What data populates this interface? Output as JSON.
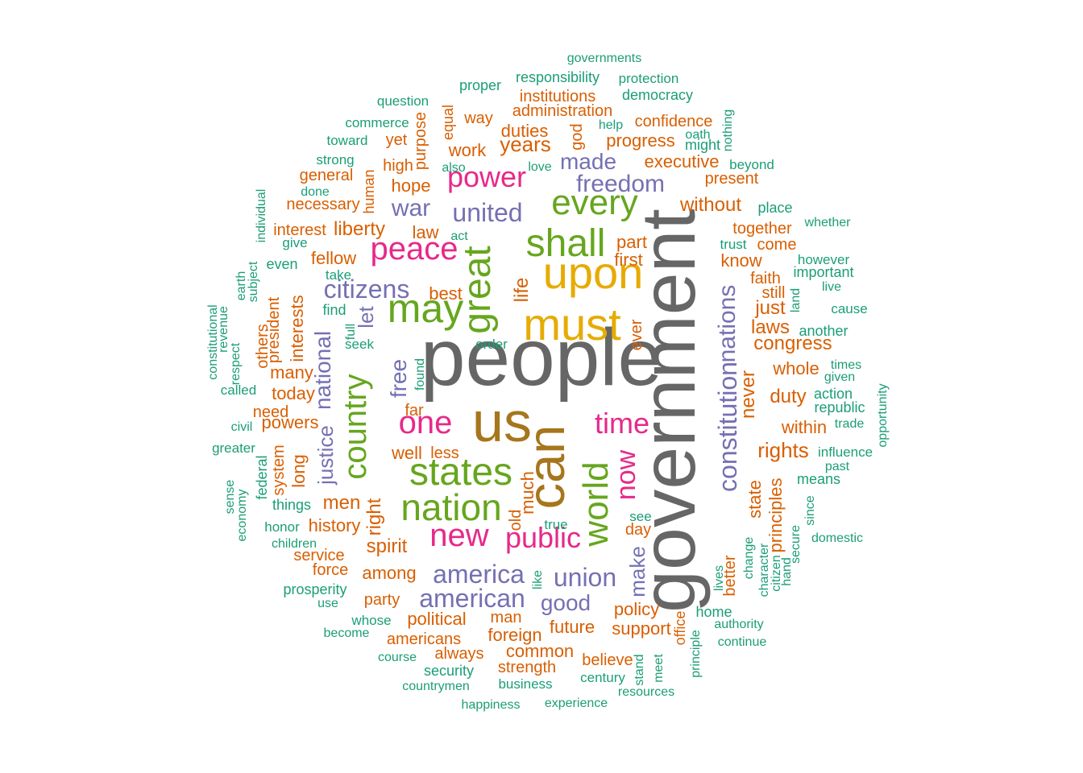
{
  "chart_data": {
    "type": "wordcloud",
    "colors": {
      "teal": "#1B9E77",
      "orange": "#D95F02",
      "purple": "#7570B3",
      "magenta": "#E7298A",
      "green": "#66A61E",
      "gold": "#E6AB02",
      "brown": "#A6761D",
      "gray": "#666666"
    },
    "words": [
      {
        "text": "people",
        "size": 100,
        "color": "#666666"
      },
      {
        "text": "government",
        "size": 95,
        "color": "#666666"
      },
      {
        "text": "us",
        "size": 70,
        "color": "#A6761D"
      },
      {
        "text": "can",
        "size": 65,
        "color": "#A6761D"
      },
      {
        "text": "must",
        "size": 56,
        "color": "#E6AB02"
      },
      {
        "text": "upon",
        "size": 56,
        "color": "#E6AB02"
      },
      {
        "text": "may",
        "size": 50,
        "color": "#66A61E"
      },
      {
        "text": "great",
        "size": 48,
        "color": "#66A61E"
      },
      {
        "text": "states",
        "size": 48,
        "color": "#66A61E"
      },
      {
        "text": "shall",
        "size": 48,
        "color": "#66A61E"
      },
      {
        "text": "nation",
        "size": 46,
        "color": "#66A61E"
      },
      {
        "text": "every",
        "size": 44,
        "color": "#66A61E"
      },
      {
        "text": "world",
        "size": 44,
        "color": "#66A61E"
      },
      {
        "text": "country",
        "size": 40,
        "color": "#66A61E"
      },
      {
        "text": "peace",
        "size": 40,
        "color": "#E7298A"
      },
      {
        "text": "one",
        "size": 40,
        "color": "#E7298A"
      },
      {
        "text": "new",
        "size": 40,
        "color": "#E7298A"
      },
      {
        "text": "power",
        "size": 36,
        "color": "#E7298A"
      },
      {
        "text": "public",
        "size": 36,
        "color": "#E7298A"
      },
      {
        "text": "time",
        "size": 36,
        "color": "#E7298A"
      },
      {
        "text": "now",
        "size": 34,
        "color": "#E7298A"
      },
      {
        "text": "constitution",
        "size": 32,
        "color": "#7570B3"
      },
      {
        "text": "america",
        "size": 32,
        "color": "#7570B3"
      },
      {
        "text": "union",
        "size": 32,
        "color": "#7570B3"
      },
      {
        "text": "citizens",
        "size": 32,
        "color": "#7570B3"
      },
      {
        "text": "american",
        "size": 32,
        "color": "#7570B3"
      },
      {
        "text": "united",
        "size": 32,
        "color": "#7570B3"
      },
      {
        "text": "freedom",
        "size": 30,
        "color": "#7570B3"
      },
      {
        "text": "nations",
        "size": 30,
        "color": "#7570B3"
      },
      {
        "text": "war",
        "size": 30,
        "color": "#7570B3"
      },
      {
        "text": "national",
        "size": 28,
        "color": "#7570B3"
      },
      {
        "text": "free",
        "size": 28,
        "color": "#7570B3"
      },
      {
        "text": "good",
        "size": 28,
        "color": "#7570B3"
      },
      {
        "text": "made",
        "size": 28,
        "color": "#7570B3"
      },
      {
        "text": "make",
        "size": 26,
        "color": "#7570B3"
      },
      {
        "text": "let",
        "size": 26,
        "color": "#7570B3"
      },
      {
        "text": "justice",
        "size": 26,
        "color": "#7570B3"
      },
      {
        "text": "years",
        "size": 26,
        "color": "#D95F02"
      },
      {
        "text": "rights",
        "size": 26,
        "color": "#D95F02"
      },
      {
        "text": "life",
        "size": 24,
        "color": "#D95F02"
      },
      {
        "text": "spirit",
        "size": 24,
        "color": "#D95F02"
      },
      {
        "text": "without",
        "size": 24,
        "color": "#D95F02"
      },
      {
        "text": "men",
        "size": 24,
        "color": "#D95F02"
      },
      {
        "text": "congress",
        "size": 24,
        "color": "#D95F02"
      },
      {
        "text": "right",
        "size": 24,
        "color": "#D95F02"
      },
      {
        "text": "laws",
        "size": 24,
        "color": "#D95F02"
      },
      {
        "text": "just",
        "size": 24,
        "color": "#D95F02"
      },
      {
        "text": "never",
        "size": 24,
        "color": "#D95F02"
      },
      {
        "text": "duty",
        "size": 24,
        "color": "#D95F02"
      },
      {
        "text": "liberty",
        "size": 24,
        "color": "#D95F02"
      },
      {
        "text": "best",
        "size": 22,
        "color": "#D95F02"
      },
      {
        "text": "work",
        "size": 22,
        "color": "#D95F02"
      },
      {
        "text": "hope",
        "size": 22,
        "color": "#D95F02"
      },
      {
        "text": "law",
        "size": 22,
        "color": "#D95F02"
      },
      {
        "text": "fellow",
        "size": 22,
        "color": "#D95F02"
      },
      {
        "text": "many",
        "size": 22,
        "color": "#D95F02"
      },
      {
        "text": "today",
        "size": 22,
        "color": "#D95F02"
      },
      {
        "text": "well",
        "size": 22,
        "color": "#D95F02"
      },
      {
        "text": "among",
        "size": 22,
        "color": "#D95F02"
      },
      {
        "text": "political",
        "size": 22,
        "color": "#D95F02"
      },
      {
        "text": "foreign",
        "size": 22,
        "color": "#D95F02"
      },
      {
        "text": "future",
        "size": 22,
        "color": "#D95F02"
      },
      {
        "text": "policy",
        "size": 22,
        "color": "#D95F02"
      },
      {
        "text": "support",
        "size": 22,
        "color": "#D95F02"
      },
      {
        "text": "whole",
        "size": 22,
        "color": "#D95F02"
      },
      {
        "text": "within",
        "size": 22,
        "color": "#D95F02"
      },
      {
        "text": "state",
        "size": 22,
        "color": "#D95F02"
      },
      {
        "text": "principles",
        "size": 22,
        "color": "#D95F02"
      },
      {
        "text": "executive",
        "size": 22,
        "color": "#D95F02"
      },
      {
        "text": "progress",
        "size": 22,
        "color": "#D95F02"
      },
      {
        "text": "confidence",
        "size": 20,
        "color": "#D95F02"
      },
      {
        "text": "duties",
        "size": 22,
        "color": "#D95F02"
      },
      {
        "text": "god",
        "size": 20,
        "color": "#D95F02"
      },
      {
        "text": "administration",
        "size": 20,
        "color": "#D95F02"
      },
      {
        "text": "institutions",
        "size": 20,
        "color": "#D95F02"
      },
      {
        "text": "way",
        "size": 20,
        "color": "#D95F02"
      },
      {
        "text": "yet",
        "size": 20,
        "color": "#D95F02"
      },
      {
        "text": "purpose",
        "size": 20,
        "color": "#D95F02"
      },
      {
        "text": "equal",
        "size": 18,
        "color": "#D95F02"
      },
      {
        "text": "high",
        "size": 20,
        "color": "#D95F02"
      },
      {
        "text": "human",
        "size": 18,
        "color": "#D95F02"
      },
      {
        "text": "general",
        "size": 20,
        "color": "#D95F02"
      },
      {
        "text": "necessary",
        "size": 20,
        "color": "#D95F02"
      },
      {
        "text": "interest",
        "size": 20,
        "color": "#D95F02"
      },
      {
        "text": "part",
        "size": 22,
        "color": "#D95F02"
      },
      {
        "text": "first",
        "size": 22,
        "color": "#D95F02"
      },
      {
        "text": "know",
        "size": 22,
        "color": "#D95F02"
      },
      {
        "text": "faith",
        "size": 20,
        "color": "#D95F02"
      },
      {
        "text": "together",
        "size": 20,
        "color": "#D95F02"
      },
      {
        "text": "come",
        "size": 20,
        "color": "#D95F02"
      },
      {
        "text": "present",
        "size": 20,
        "color": "#D95F02"
      },
      {
        "text": "still",
        "size": 20,
        "color": "#D95F02"
      },
      {
        "text": "ever",
        "size": 20,
        "color": "#D95F02"
      },
      {
        "text": "interests",
        "size": 22,
        "color": "#D95F02"
      },
      {
        "text": "president",
        "size": 20,
        "color": "#D95F02"
      },
      {
        "text": "others",
        "size": 20,
        "color": "#D95F02"
      },
      {
        "text": "powers",
        "size": 22,
        "color": "#D95F02"
      },
      {
        "text": "need",
        "size": 20,
        "color": "#D95F02"
      },
      {
        "text": "far",
        "size": 20,
        "color": "#D95F02"
      },
      {
        "text": "less",
        "size": 20,
        "color": "#D95F02"
      },
      {
        "text": "much",
        "size": 22,
        "color": "#D95F02"
      },
      {
        "text": "old",
        "size": 20,
        "color": "#D95F02"
      },
      {
        "text": "day",
        "size": 20,
        "color": "#D95F02"
      },
      {
        "text": "system",
        "size": 20,
        "color": "#D95F02"
      },
      {
        "text": "long",
        "size": 22,
        "color": "#D95F02"
      },
      {
        "text": "history",
        "size": 22,
        "color": "#D95F02"
      },
      {
        "text": "service",
        "size": 20,
        "color": "#D95F02"
      },
      {
        "text": "force",
        "size": 20,
        "color": "#D95F02"
      },
      {
        "text": "party",
        "size": 20,
        "color": "#D95F02"
      },
      {
        "text": "americans",
        "size": 20,
        "color": "#D95F02"
      },
      {
        "text": "man",
        "size": 20,
        "color": "#D95F02"
      },
      {
        "text": "common",
        "size": 22,
        "color": "#D95F02"
      },
      {
        "text": "always",
        "size": 20,
        "color": "#D95F02"
      },
      {
        "text": "strength",
        "size": 20,
        "color": "#D95F02"
      },
      {
        "text": "believe",
        "size": 20,
        "color": "#D95F02"
      },
      {
        "text": "better",
        "size": 20,
        "color": "#D95F02"
      },
      {
        "text": "office",
        "size": 18,
        "color": "#D95F02"
      },
      {
        "text": "governments",
        "size": 16,
        "color": "#1B9E77"
      },
      {
        "text": "responsibility",
        "size": 18,
        "color": "#1B9E77"
      },
      {
        "text": "proper",
        "size": 18,
        "color": "#1B9E77"
      },
      {
        "text": "protection",
        "size": 17,
        "color": "#1B9E77"
      },
      {
        "text": "democracy",
        "size": 18,
        "color": "#1B9E77"
      },
      {
        "text": "question",
        "size": 17,
        "color": "#1B9E77"
      },
      {
        "text": "commerce",
        "size": 17,
        "color": "#1B9E77"
      },
      {
        "text": "help",
        "size": 16,
        "color": "#1B9E77"
      },
      {
        "text": "oath",
        "size": 16,
        "color": "#1B9E77"
      },
      {
        "text": "might",
        "size": 18,
        "color": "#1B9E77"
      },
      {
        "text": "nothing",
        "size": 16,
        "color": "#1B9E77"
      },
      {
        "text": "toward",
        "size": 17,
        "color": "#1B9E77"
      },
      {
        "text": "strong",
        "size": 17,
        "color": "#1B9E77"
      },
      {
        "text": "also",
        "size": 16,
        "color": "#1B9E77"
      },
      {
        "text": "love",
        "size": 16,
        "color": "#1B9E77"
      },
      {
        "text": "beyond",
        "size": 17,
        "color": "#1B9E77"
      },
      {
        "text": "done",
        "size": 16,
        "color": "#1B9E77"
      },
      {
        "text": "individual",
        "size": 16,
        "color": "#1B9E77"
      },
      {
        "text": "give",
        "size": 17,
        "color": "#1B9E77"
      },
      {
        "text": "act",
        "size": 16,
        "color": "#1B9E77"
      },
      {
        "text": "place",
        "size": 18,
        "color": "#1B9E77"
      },
      {
        "text": "whether",
        "size": 16,
        "color": "#1B9E77"
      },
      {
        "text": "trust",
        "size": 17,
        "color": "#1B9E77"
      },
      {
        "text": "however",
        "size": 17,
        "color": "#1B9E77"
      },
      {
        "text": "important",
        "size": 18,
        "color": "#1B9E77"
      },
      {
        "text": "live",
        "size": 16,
        "color": "#1B9E77"
      },
      {
        "text": "land",
        "size": 16,
        "color": "#1B9E77"
      },
      {
        "text": "cause",
        "size": 17,
        "color": "#1B9E77"
      },
      {
        "text": "another",
        "size": 18,
        "color": "#1B9E77"
      },
      {
        "text": "even",
        "size": 18,
        "color": "#1B9E77"
      },
      {
        "text": "take",
        "size": 17,
        "color": "#1B9E77"
      },
      {
        "text": "earth",
        "size": 16,
        "color": "#1B9E77"
      },
      {
        "text": "subject",
        "size": 16,
        "color": "#1B9E77"
      },
      {
        "text": "find",
        "size": 18,
        "color": "#1B9E77"
      },
      {
        "text": "full",
        "size": 16,
        "color": "#1B9E77"
      },
      {
        "text": "seek",
        "size": 17,
        "color": "#1B9E77"
      },
      {
        "text": "order",
        "size": 17,
        "color": "#1B9E77"
      },
      {
        "text": "found",
        "size": 16,
        "color": "#1B9E77"
      },
      {
        "text": "constitutional",
        "size": 16,
        "color": "#1B9E77"
      },
      {
        "text": "revenue",
        "size": 16,
        "color": "#1B9E77"
      },
      {
        "text": "respect",
        "size": 16,
        "color": "#1B9E77"
      },
      {
        "text": "called",
        "size": 17,
        "color": "#1B9E77"
      },
      {
        "text": "civil",
        "size": 16,
        "color": "#1B9E77"
      },
      {
        "text": "greater",
        "size": 17,
        "color": "#1B9E77"
      },
      {
        "text": "times",
        "size": 16,
        "color": "#1B9E77"
      },
      {
        "text": "given",
        "size": 16,
        "color": "#1B9E77"
      },
      {
        "text": "action",
        "size": 18,
        "color": "#1B9E77"
      },
      {
        "text": "republic",
        "size": 18,
        "color": "#1B9E77"
      },
      {
        "text": "trade",
        "size": 16,
        "color": "#1B9E77"
      },
      {
        "text": "opportunity",
        "size": 16,
        "color": "#1B9E77"
      },
      {
        "text": "influence",
        "size": 17,
        "color": "#1B9E77"
      },
      {
        "text": "past",
        "size": 16,
        "color": "#1B9E77"
      },
      {
        "text": "means",
        "size": 18,
        "color": "#1B9E77"
      },
      {
        "text": "since",
        "size": 16,
        "color": "#1B9E77"
      },
      {
        "text": "secure",
        "size": 16,
        "color": "#1B9E77"
      },
      {
        "text": "domestic",
        "size": 16,
        "color": "#1B9E77"
      },
      {
        "text": "federal",
        "size": 18,
        "color": "#1B9E77"
      },
      {
        "text": "sense",
        "size": 16,
        "color": "#1B9E77"
      },
      {
        "text": "economy",
        "size": 16,
        "color": "#1B9E77"
      },
      {
        "text": "things",
        "size": 18,
        "color": "#1B9E77"
      },
      {
        "text": "honor",
        "size": 17,
        "color": "#1B9E77"
      },
      {
        "text": "children",
        "size": 16,
        "color": "#1B9E77"
      },
      {
        "text": "see",
        "size": 17,
        "color": "#1B9E77"
      },
      {
        "text": "true",
        "size": 17,
        "color": "#1B9E77"
      },
      {
        "text": "like",
        "size": 16,
        "color": "#1B9E77"
      },
      {
        "text": "prosperity",
        "size": 18,
        "color": "#1B9E77"
      },
      {
        "text": "use",
        "size": 16,
        "color": "#1B9E77"
      },
      {
        "text": "whose",
        "size": 17,
        "color": "#1B9E77"
      },
      {
        "text": "become",
        "size": 16,
        "color": "#1B9E77"
      },
      {
        "text": "course",
        "size": 16,
        "color": "#1B9E77"
      },
      {
        "text": "security",
        "size": 18,
        "color": "#1B9E77"
      },
      {
        "text": "countrymen",
        "size": 16,
        "color": "#1B9E77"
      },
      {
        "text": "business",
        "size": 17,
        "color": "#1B9E77"
      },
      {
        "text": "happiness",
        "size": 16,
        "color": "#1B9E77"
      },
      {
        "text": "experience",
        "size": 16,
        "color": "#1B9E77"
      },
      {
        "text": "century",
        "size": 17,
        "color": "#1B9E77"
      },
      {
        "text": "resources",
        "size": 16,
        "color": "#1B9E77"
      },
      {
        "text": "stand",
        "size": 16,
        "color": "#1B9E77"
      },
      {
        "text": "meet",
        "size": 16,
        "color": "#1B9E77"
      },
      {
        "text": "principle",
        "size": 16,
        "color": "#1B9E77"
      },
      {
        "text": "home",
        "size": 18,
        "color": "#1B9E77"
      },
      {
        "text": "authority",
        "size": 16,
        "color": "#1B9E77"
      },
      {
        "text": "continue",
        "size": 16,
        "color": "#1B9E77"
      },
      {
        "text": "lives",
        "size": 16,
        "color": "#1B9E77"
      },
      {
        "text": "change",
        "size": 16,
        "color": "#1B9E77"
      },
      {
        "text": "character",
        "size": 16,
        "color": "#1B9E77"
      },
      {
        "text": "citizen",
        "size": 16,
        "color": "#1B9E77"
      },
      {
        "text": "hand",
        "size": 16,
        "color": "#1B9E77"
      }
    ]
  }
}
